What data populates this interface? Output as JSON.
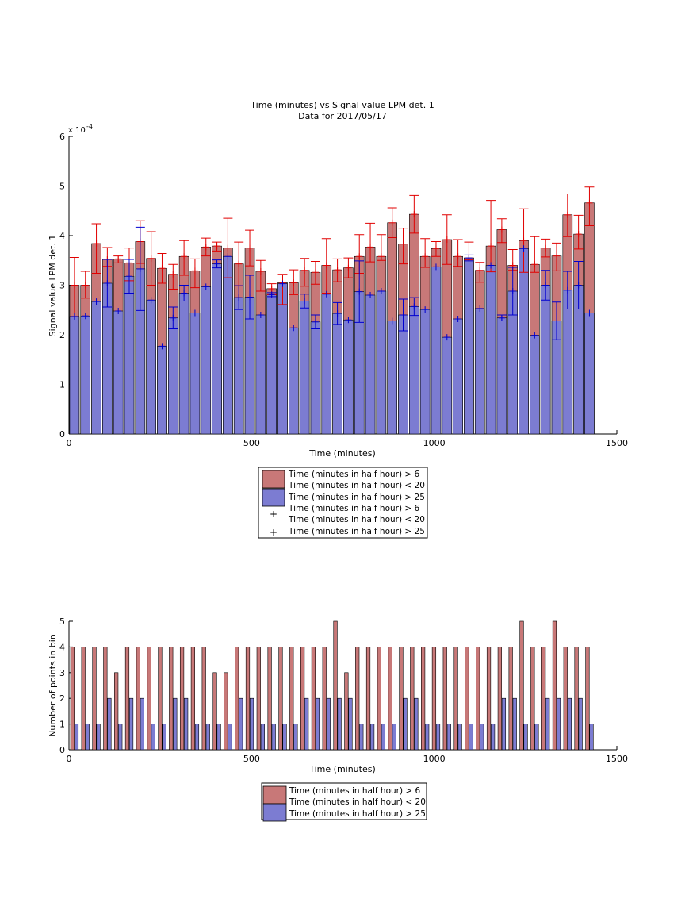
{
  "chart_data": [
    {
      "type": "bar",
      "title": "Time (minutes) vs Signal value LPM det. 1",
      "subtitle": "Data for 2017/05/17",
      "xlabel": "Time (minutes)",
      "ylabel": "Signal value LPM det. 1",
      "xlim": [
        0,
        1500
      ],
      "ylim": [
        0,
        6
      ],
      "y_exponent_label": "x 10",
      "y_exponent_power": "-4",
      "xticks": [
        "0",
        "500",
        "1000",
        "1500"
      ],
      "yticks": [
        "0",
        "1",
        "2",
        "3",
        "4",
        "5",
        "6"
      ],
      "grid": false,
      "colors": {
        "red": "#c87878",
        "blue": "#7c7cd2",
        "red_mark": "#e00000",
        "blue_mark": "#0000d0"
      },
      "x": [
        15,
        45,
        75,
        105,
        135,
        165,
        195,
        225,
        255,
        285,
        315,
        345,
        375,
        405,
        435,
        465,
        495,
        525,
        555,
        585,
        615,
        645,
        675,
        705,
        735,
        765,
        795,
        825,
        855,
        885,
        915,
        945,
        975,
        1005,
        1035,
        1065,
        1095,
        1125,
        1155,
        1185,
        1215,
        1245,
        1275,
        1305,
        1335,
        1365,
        1395,
        1425
      ],
      "series": [
        {
          "name": "Time (minutes in half hour) > 6\nTime (minutes in half hour) < 20",
          "values": [
            3.0,
            3.0,
            3.84,
            3.52,
            3.53,
            3.45,
            3.88,
            3.54,
            3.34,
            3.22,
            3.58,
            3.29,
            3.77,
            3.79,
            3.75,
            3.43,
            3.75,
            3.28,
            2.93,
            3.05,
            3.05,
            3.3,
            3.26,
            3.4,
            3.31,
            3.35,
            3.58,
            3.77,
            3.58,
            4.26,
            3.83,
            4.43,
            3.58,
            3.74,
            3.92,
            3.58,
            3.55,
            3.3,
            3.79,
            4.12,
            3.4,
            3.9,
            3.42,
            3.75,
            3.59,
            4.42,
            4.03,
            4.66
          ],
          "err_low": [
            0.56,
            0.26,
            0.6,
            0.14,
            0.08,
            0.36,
            0.44,
            0.54,
            0.3,
            0.3,
            0.38,
            0.34,
            0.18,
            0.1,
            0.6,
            0.44,
            0.36,
            0.4,
            0.12,
            0.44,
            0.24,
            0.32,
            0.24,
            0.56,
            0.24,
            0.2,
            0.34,
            0.3,
            0.08,
            0.3,
            0.4,
            0.38,
            0.22,
            0.16,
            0.5,
            0.2,
            0.04,
            0.24,
            0.52,
            0.26,
            0.1,
            0.64,
            0.16,
            0.18,
            0.3,
            0.44,
            0.3,
            0.46
          ],
          "err_high": [
            0.56,
            0.28,
            0.4,
            0.24,
            0.06,
            0.3,
            0.42,
            0.54,
            0.3,
            0.2,
            0.32,
            0.24,
            0.18,
            0.08,
            0.6,
            0.44,
            0.36,
            0.22,
            0.1,
            0.17,
            0.26,
            0.24,
            0.22,
            0.54,
            0.22,
            0.2,
            0.44,
            0.48,
            0.44,
            0.3,
            0.32,
            0.38,
            0.36,
            0.14,
            0.5,
            0.34,
            0.32,
            0.16,
            0.92,
            0.22,
            0.32,
            0.64,
            0.56,
            0.18,
            0.26,
            0.42,
            0.38,
            0.32
          ]
        },
        {
          "name": "Time (minutes in half hour) > 25",
          "values": [
            2.37,
            2.38,
            2.67,
            3.04,
            2.48,
            3.18,
            3.33,
            2.7,
            1.77,
            2.34,
            2.84,
            2.44,
            2.97,
            3.43,
            3.58,
            2.75,
            2.76,
            2.4,
            2.81,
            3.03,
            2.14,
            2.68,
            2.26,
            2.82,
            2.43,
            2.3,
            2.87,
            2.8,
            2.88,
            2.28,
            2.4,
            2.57,
            2.51,
            3.37,
            1.95,
            2.32,
            3.55,
            2.53,
            3.4,
            2.34,
            2.88,
            3.74,
            1.99,
            3.0,
            2.28,
            2.9,
            3.0,
            2.44
          ],
          "err_low": [
            0.0,
            0.0,
            0.0,
            0.48,
            0.0,
            0.34,
            0.84,
            0.0,
            0.0,
            0.22,
            0.16,
            0.0,
            0.0,
            0.08,
            0.0,
            0.24,
            0.44,
            0.0,
            0.04,
            0.0,
            0.0,
            0.14,
            0.14,
            0.0,
            0.22,
            0.0,
            0.62,
            0.0,
            0.0,
            0.0,
            0.32,
            0.18,
            0.0,
            0.0,
            0.0,
            0.0,
            0.06,
            0.0,
            0.0,
            0.06,
            0.48,
            0.0,
            0.0,
            0.3,
            0.38,
            0.38,
            0.48,
            0.0
          ],
          "err_high": [
            0.0,
            0.0,
            0.0,
            0.48,
            0.0,
            0.34,
            0.84,
            0.0,
            0.0,
            0.22,
            0.16,
            0.0,
            0.0,
            0.08,
            0.0,
            0.24,
            0.44,
            0.0,
            0.04,
            0.0,
            0.0,
            0.14,
            0.14,
            0.0,
            0.22,
            0.0,
            0.62,
            0.0,
            0.0,
            0.0,
            0.32,
            0.18,
            0.0,
            0.0,
            0.0,
            0.0,
            0.06,
            0.0,
            0.0,
            0.06,
            0.48,
            0.0,
            0.0,
            0.3,
            0.38,
            0.38,
            0.48,
            0.0
          ]
        }
      ],
      "legend": {
        "placement": "below",
        "entries": [
          {
            "label": "Time (minutes in half hour) > 6\nTime (minutes in half hour) < 20",
            "kind": "patch",
            "color": "red"
          },
          {
            "label": "Time (minutes in half hour) > 25",
            "kind": "patch",
            "color": "blue"
          },
          {
            "label": "Time (minutes in half hour) > 6\nTime (minutes in half hour) < 20",
            "kind": "marker",
            "color": "red_mark"
          },
          {
            "label": "Time (minutes in half hour) > 25",
            "kind": "marker",
            "color": "blue_mark"
          }
        ]
      }
    },
    {
      "type": "bar",
      "xlabel": "Time (minutes)",
      "ylabel": "Number of points in bin",
      "xlim": [
        0,
        1500
      ],
      "ylim": [
        0,
        5
      ],
      "xticks": [
        "0",
        "500",
        "1000",
        "1500"
      ],
      "yticks": [
        "0",
        "1",
        "2",
        "3",
        "4",
        "5"
      ],
      "grid": false,
      "x": [
        15,
        45,
        75,
        105,
        135,
        165,
        195,
        225,
        255,
        285,
        315,
        345,
        375,
        405,
        435,
        465,
        495,
        525,
        555,
        585,
        615,
        645,
        675,
        705,
        735,
        765,
        795,
        825,
        855,
        885,
        915,
        945,
        975,
        1005,
        1035,
        1065,
        1095,
        1125,
        1155,
        1185,
        1215,
        1245,
        1275,
        1305,
        1335,
        1365,
        1395,
        1425
      ],
      "series": [
        {
          "name": "Time (minutes in half hour) > 6\nTime (minutes in half hour) < 20",
          "values": [
            4,
            4,
            4,
            4,
            3,
            4,
            4,
            4,
            4,
            4,
            4,
            4,
            4,
            3,
            3,
            4,
            4,
            4,
            4,
            4,
            4,
            4,
            4,
            4,
            5,
            3,
            4,
            4,
            4,
            4,
            4,
            4,
            4,
            4,
            4,
            4,
            4,
            4,
            4,
            4,
            4,
            5,
            4,
            4,
            5,
            4,
            4,
            4
          ]
        },
        {
          "name": "Time (minutes in half hour) > 25",
          "values": [
            1,
            1,
            1,
            2,
            1,
            2,
            2,
            1,
            1,
            2,
            2,
            1,
            1,
            1,
            1,
            2,
            2,
            1,
            1,
            1,
            1,
            2,
            2,
            2,
            2,
            2,
            1,
            1,
            1,
            1,
            2,
            2,
            1,
            1,
            1,
            1,
            1,
            1,
            1,
            2,
            2,
            1,
            1,
            2,
            2,
            2,
            2,
            1
          ]
        }
      ],
      "legend": {
        "placement": "below",
        "entries": [
          {
            "label": "Time (minutes in half hour) > 6\nTime (minutes in half hour) < 20",
            "kind": "patch",
            "color": "red"
          },
          {
            "label": "Time (minutes in half hour) > 25",
            "kind": "patch",
            "color": "blue"
          }
        ]
      }
    }
  ]
}
